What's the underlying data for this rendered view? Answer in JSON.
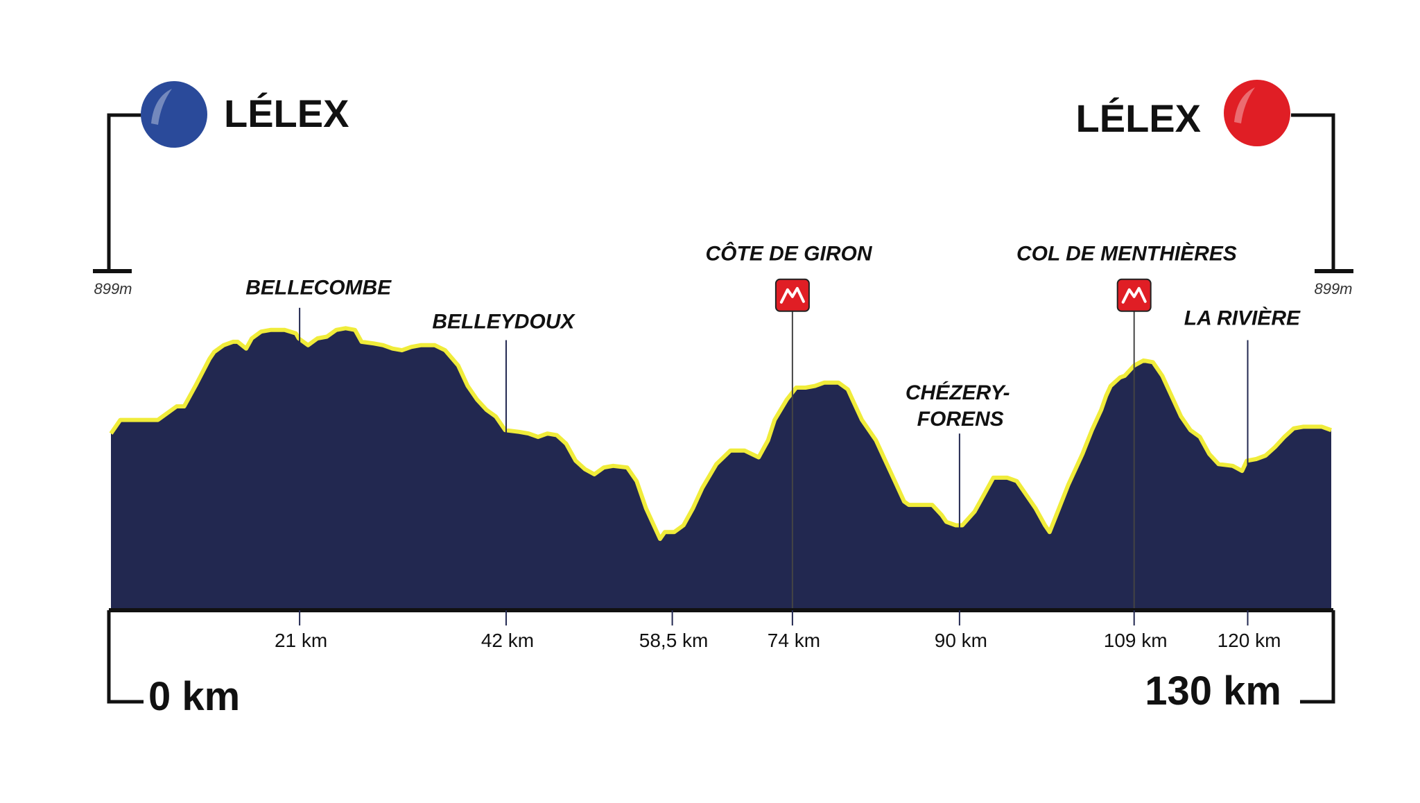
{
  "chart_data": {
    "type": "area",
    "start": {
      "label": "LÉLEX",
      "color": "#2a4a9a"
    },
    "finish": {
      "label": "LÉLEX",
      "color": "#e01e25"
    },
    "altitude_label_left": "899m",
    "altitude_label_right": "899m",
    "distance_start_label": "0 km",
    "distance_end_label": "130 km",
    "fill_color": "#222850",
    "edge_color": "#f0ec3a",
    "x_range": [
      0,
      130
    ],
    "y_range": [
      0,
      100
    ],
    "profile": [
      [
        0,
        52
      ],
      [
        1,
        56
      ],
      [
        3,
        56
      ],
      [
        5,
        56
      ],
      [
        6,
        58
      ],
      [
        7,
        60
      ],
      [
        7.8,
        60
      ],
      [
        9,
        66
      ],
      [
        10.5,
        74
      ],
      [
        11,
        76
      ],
      [
        12,
        78
      ],
      [
        13,
        79
      ],
      [
        13.5,
        79
      ],
      [
        14.4,
        77
      ],
      [
        15,
        80
      ],
      [
        16,
        82
      ],
      [
        17,
        82.5
      ],
      [
        18.5,
        82.5
      ],
      [
        19.7,
        81.5
      ],
      [
        20,
        80
      ],
      [
        21,
        78
      ],
      [
        22,
        80
      ],
      [
        23,
        80.5
      ],
      [
        24,
        82.5
      ],
      [
        25,
        83
      ],
      [
        26,
        82.5
      ],
      [
        26.7,
        79
      ],
      [
        28,
        78.5
      ],
      [
        29,
        78
      ],
      [
        30,
        77
      ],
      [
        31,
        76.5
      ],
      [
        32,
        77.5
      ],
      [
        33,
        78
      ],
      [
        34.5,
        78
      ],
      [
        35.6,
        76.5
      ],
      [
        37,
        72
      ],
      [
        38,
        66
      ],
      [
        39,
        62
      ],
      [
        40,
        59
      ],
      [
        41,
        57
      ],
      [
        42,
        53
      ],
      [
        43.5,
        52.5
      ],
      [
        44.5,
        52
      ],
      [
        45.5,
        51
      ],
      [
        46.5,
        52
      ],
      [
        47.5,
        51.5
      ],
      [
        48.5,
        49
      ],
      [
        49.5,
        44
      ],
      [
        50.5,
        41.5
      ],
      [
        51.5,
        40
      ],
      [
        52.5,
        42
      ],
      [
        53.5,
        42.5
      ],
      [
        55,
        42
      ],
      [
        56,
        38
      ],
      [
        57,
        30
      ],
      [
        58,
        24
      ],
      [
        58.5,
        21
      ],
      [
        59,
        23
      ],
      [
        60,
        23
      ],
      [
        61,
        25
      ],
      [
        62,
        30
      ],
      [
        63,
        36
      ],
      [
        64.5,
        43
      ],
      [
        66,
        47
      ],
      [
        67.5,
        47
      ],
      [
        69,
        45
      ],
      [
        70,
        50
      ],
      [
        70.7,
        56
      ],
      [
        72,
        62
      ],
      [
        73,
        65.5
      ],
      [
        74,
        65.5
      ],
      [
        75,
        66
      ],
      [
        76,
        67
      ],
      [
        77.5,
        67
      ],
      [
        78.5,
        65
      ],
      [
        79,
        62
      ],
      [
        80,
        56
      ],
      [
        81.5,
        50
      ],
      [
        82.5,
        44
      ],
      [
        83.5,
        38
      ],
      [
        84.5,
        32
      ],
      [
        85,
        31
      ],
      [
        87.5,
        31
      ],
      [
        88.5,
        28
      ],
      [
        89,
        26
      ],
      [
        90,
        25
      ],
      [
        90.7,
        25
      ],
      [
        92,
        29
      ],
      [
        93,
        34
      ],
      [
        94,
        39
      ],
      [
        95.5,
        39
      ],
      [
        96.5,
        38
      ],
      [
        97.5,
        34
      ],
      [
        98.5,
        30
      ],
      [
        99.5,
        25
      ],
      [
        100,
        23
      ],
      [
        101,
        30
      ],
      [
        102,
        37
      ],
      [
        103.5,
        46
      ],
      [
        104.5,
        53
      ],
      [
        105.5,
        59
      ],
      [
        106,
        63
      ],
      [
        106.5,
        66
      ],
      [
        107.5,
        68.5
      ],
      [
        108,
        69
      ],
      [
        109,
        72
      ],
      [
        110,
        73.5
      ],
      [
        111,
        73
      ],
      [
        112,
        69
      ],
      [
        113,
        63
      ],
      [
        114,
        57
      ],
      [
        115,
        53
      ],
      [
        116,
        51
      ],
      [
        117,
        46
      ],
      [
        118,
        43
      ],
      [
        119.5,
        42.5
      ],
      [
        120.5,
        41
      ],
      [
        121,
        44
      ],
      [
        122,
        44.5
      ],
      [
        123,
        45.5
      ],
      [
        124,
        48
      ],
      [
        125,
        51
      ],
      [
        126,
        53.5
      ],
      [
        127,
        54
      ],
      [
        129,
        54
      ],
      [
        130,
        53
      ]
    ],
    "x_ticks": [
      {
        "km": 20.1,
        "label": "21 km"
      },
      {
        "km": 42.1,
        "label": "42 km"
      },
      {
        "km": 59.8,
        "label": "58,5 km"
      },
      {
        "km": 72.6,
        "label": "74 km"
      },
      {
        "km": 90.4,
        "label": "90 km"
      },
      {
        "km": 109.0,
        "label": "109 km"
      },
      {
        "km": 121.1,
        "label": "120 km"
      }
    ],
    "places": [
      {
        "km": 20.1,
        "label": "BELLECOMBE",
        "label_km": 22.1,
        "label_level": 93,
        "line_top_level": 89,
        "climb": false
      },
      {
        "km": 42.1,
        "label": "BELLEYDOUX",
        "label_km": 41.8,
        "label_level": 83,
        "line_top_level": 79.5,
        "climb": false
      },
      {
        "km": 72.6,
        "label": "CÔTE DE GIRON",
        "label_km": 72.2,
        "label_level": 103,
        "line_top_level": 88,
        "climb": true
      },
      {
        "km": 90.4,
        "label": "CHÉZERY-",
        "label_line2": "FORENS",
        "label_km": 90.2,
        "label_level": 62,
        "line_top_level": 52,
        "climb": false
      },
      {
        "km": 109.0,
        "label": "COL DE MENTHIÈRES",
        "label_km": 108.2,
        "label_level": 103,
        "line_top_level": 88,
        "climb": true
      },
      {
        "km": 121.1,
        "label": "LA RIVIÈRE",
        "label_km": 120.5,
        "label_level": 84,
        "line_top_level": 79.5,
        "climb": false
      }
    ]
  }
}
